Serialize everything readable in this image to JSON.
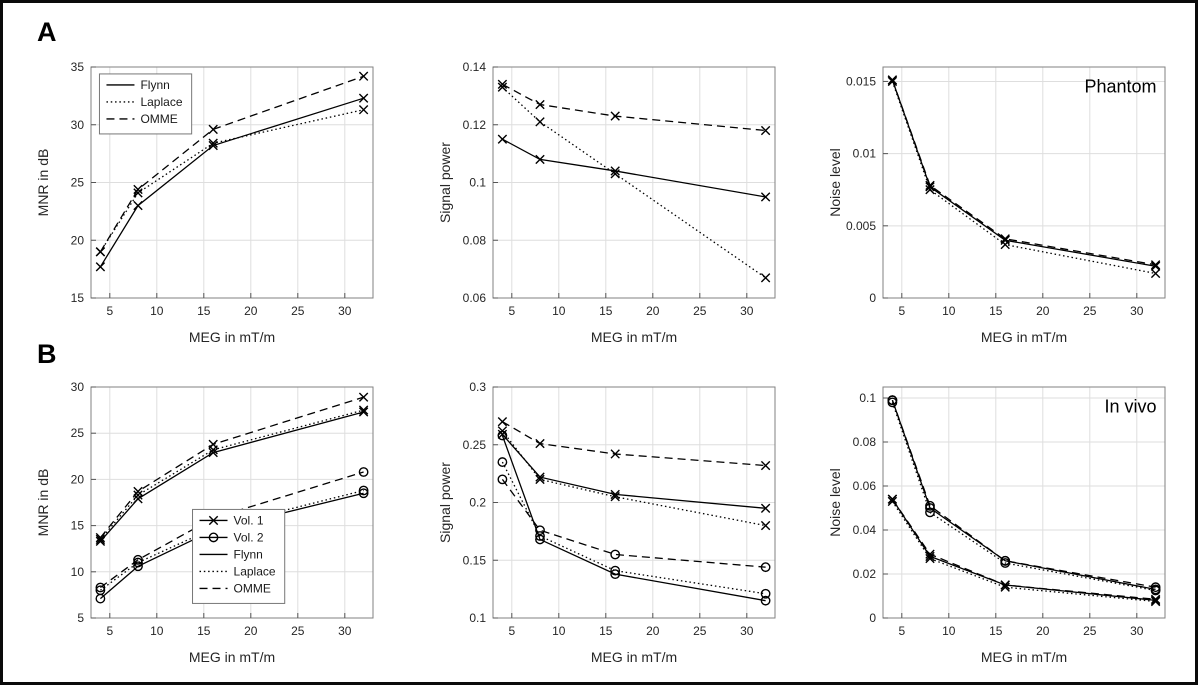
{
  "figure": {
    "panel_a_label": "A",
    "panel_b_label": "B",
    "line_color": "#000000",
    "grid_color": "#dedede",
    "box_color": "#828282"
  },
  "chart_data": [
    {
      "id": "phantom_mnr",
      "type": "line",
      "panel": "A",
      "xlabel": "MEG in mT/m",
      "ylabel": "MNR in dB",
      "xlim": [
        3,
        33
      ],
      "ylim": [
        15,
        35
      ],
      "xticks": [
        5,
        10,
        15,
        20,
        25,
        30
      ],
      "yticks": [
        15,
        20,
        25,
        30,
        35
      ],
      "x": [
        4,
        8,
        16,
        32
      ],
      "grid": true,
      "legend": {
        "fx": 0.03,
        "fy": 0.03,
        "entries": [
          {
            "label": "Flynn",
            "line": "solid",
            "marker": "none"
          },
          {
            "label": "Laplace",
            "line": "dotted",
            "marker": "none"
          },
          {
            "label": "OMME",
            "line": "dashed",
            "marker": "none"
          }
        ]
      },
      "series": [
        {
          "name": "Flynn",
          "line": "solid",
          "marker": "x",
          "values": [
            17.7,
            23.0,
            28.2,
            32.3
          ]
        },
        {
          "name": "Laplace",
          "line": "dotted",
          "marker": "x",
          "values": [
            19.0,
            24.1,
            28.4,
            31.3
          ]
        },
        {
          "name": "OMME",
          "line": "dashed",
          "marker": "x",
          "values": [
            19.0,
            24.4,
            29.6,
            34.2
          ]
        }
      ]
    },
    {
      "id": "phantom_signal",
      "type": "line",
      "panel": "A",
      "xlabel": "MEG in mT/m",
      "ylabel": "Signal power",
      "xlim": [
        3,
        33
      ],
      "ylim": [
        0.06,
        0.14
      ],
      "xticks": [
        5,
        10,
        15,
        20,
        25,
        30
      ],
      "yticks": [
        0.06,
        0.08,
        0.1,
        0.12,
        0.14
      ],
      "x": [
        4,
        8,
        16,
        32
      ],
      "grid": true,
      "series": [
        {
          "name": "Flynn",
          "line": "solid",
          "marker": "x",
          "values": [
            0.115,
            0.108,
            0.104,
            0.095
          ]
        },
        {
          "name": "Laplace",
          "line": "dotted",
          "marker": "x",
          "values": [
            0.133,
            0.121,
            0.103,
            0.067
          ]
        },
        {
          "name": "OMME",
          "line": "dashed",
          "marker": "x",
          "values": [
            0.134,
            0.127,
            0.123,
            0.118
          ]
        }
      ]
    },
    {
      "id": "phantom_noise",
      "type": "line",
      "panel": "A",
      "xlabel": "MEG in mT/m",
      "ylabel": "Noise level",
      "xlim": [
        3,
        33
      ],
      "ylim": [
        0,
        0.016
      ],
      "xticks": [
        5,
        10,
        15,
        20,
        25,
        30
      ],
      "yticks": [
        0,
        0.005,
        0.01,
        0.015
      ],
      "x": [
        4,
        8,
        16,
        32
      ],
      "grid": true,
      "annotation": {
        "text": "Phantom",
        "fx": 0.97,
        "fy": 0.11
      },
      "series": [
        {
          "name": "Flynn",
          "line": "solid",
          "marker": "x",
          "values": [
            0.0151,
            0.0077,
            0.004,
            0.0022
          ]
        },
        {
          "name": "Laplace",
          "line": "dotted",
          "marker": "x",
          "values": [
            0.015,
            0.0075,
            0.0037,
            0.0017
          ]
        },
        {
          "name": "OMME",
          "line": "dashed",
          "marker": "x",
          "values": [
            0.0151,
            0.0078,
            0.0041,
            0.0023
          ]
        }
      ]
    },
    {
      "id": "invivo_mnr",
      "type": "line",
      "panel": "B",
      "xlabel": "MEG in mT/m",
      "ylabel": "MNR in dB",
      "xlim": [
        3,
        33
      ],
      "ylim": [
        5,
        30
      ],
      "xticks": [
        5,
        10,
        15,
        20,
        25,
        30
      ],
      "yticks": [
        5,
        10,
        15,
        20,
        25,
        30
      ],
      "x": [
        4,
        8,
        16,
        32
      ],
      "grid": true,
      "legend": {
        "fx": 0.36,
        "fy": 0.53,
        "entries": [
          {
            "label": "Vol. 1",
            "line": "solid",
            "marker": "x"
          },
          {
            "label": "Vol. 2",
            "line": "solid",
            "marker": "o"
          },
          {
            "label": "Flynn",
            "line": "solid",
            "marker": "none"
          },
          {
            "label": "Laplace",
            "line": "dotted",
            "marker": "none"
          },
          {
            "label": "OMME",
            "line": "dashed",
            "marker": "none"
          }
        ]
      },
      "series": [
        {
          "name": "Vol. 1 Flynn",
          "line": "solid",
          "marker": "x",
          "values": [
            13.3,
            17.9,
            22.9,
            27.3
          ]
        },
        {
          "name": "Vol. 1 Laplace",
          "line": "dotted",
          "marker": "x",
          "values": [
            13.5,
            18.3,
            23.2,
            27.5
          ]
        },
        {
          "name": "Vol. 1 OMME",
          "line": "dashed",
          "marker": "x",
          "values": [
            13.7,
            18.7,
            23.8,
            28.9
          ]
        },
        {
          "name": "Vol. 2 Flynn",
          "line": "solid",
          "marker": "o",
          "values": [
            7.1,
            10.6,
            14.5,
            18.5
          ]
        },
        {
          "name": "Vol. 2 Laplace",
          "line": "dotted",
          "marker": "o",
          "values": [
            8.0,
            11.0,
            14.7,
            18.8
          ]
        },
        {
          "name": "Vol. 2 OMME",
          "line": "dashed",
          "marker": "o",
          "values": [
            8.3,
            11.3,
            15.8,
            20.8
          ]
        }
      ]
    },
    {
      "id": "invivo_signal",
      "type": "line",
      "panel": "B",
      "xlabel": "MEG in mT/m",
      "ylabel": "Signal power",
      "xlim": [
        3,
        33
      ],
      "ylim": [
        0.1,
        0.3
      ],
      "xticks": [
        5,
        10,
        15,
        20,
        25,
        30
      ],
      "yticks": [
        0.1,
        0.15,
        0.2,
        0.25,
        0.3
      ],
      "x": [
        4,
        8,
        16,
        32
      ],
      "grid": true,
      "series": [
        {
          "name": "Vol. 1 Flynn",
          "line": "solid",
          "marker": "x",
          "values": [
            0.259,
            0.222,
            0.207,
            0.195
          ]
        },
        {
          "name": "Vol. 1 Laplace",
          "line": "dotted",
          "marker": "x",
          "values": [
            0.262,
            0.22,
            0.205,
            0.18
          ]
        },
        {
          "name": "Vol. 1 OMME",
          "line": "dashed",
          "marker": "x",
          "values": [
            0.27,
            0.251,
            0.242,
            0.232
          ]
        },
        {
          "name": "Vol. 2 Flynn",
          "line": "solid",
          "marker": "o",
          "values": [
            0.258,
            0.168,
            0.138,
            0.115
          ]
        },
        {
          "name": "Vol. 2 Laplace",
          "line": "dotted",
          "marker": "o",
          "values": [
            0.235,
            0.171,
            0.141,
            0.121
          ]
        },
        {
          "name": "Vol. 2 OMME",
          "line": "dashed",
          "marker": "o",
          "values": [
            0.22,
            0.176,
            0.155,
            0.144
          ]
        }
      ]
    },
    {
      "id": "invivo_noise",
      "type": "line",
      "panel": "B",
      "xlabel": "MEG in mT/m",
      "ylabel": "Noise level",
      "xlim": [
        3,
        33
      ],
      "ylim": [
        0,
        0.105
      ],
      "xticks": [
        5,
        10,
        15,
        20,
        25,
        30
      ],
      "yticks": [
        0,
        0.02,
        0.04,
        0.06,
        0.08,
        0.1
      ],
      "x": [
        4,
        8,
        16,
        32
      ],
      "grid": true,
      "annotation": {
        "text": "In vivo",
        "fx": 0.97,
        "fy": 0.11
      },
      "series": [
        {
          "name": "Vol. 1 Flynn",
          "line": "solid",
          "marker": "x",
          "values": [
            0.054,
            0.028,
            0.015,
            0.008
          ]
        },
        {
          "name": "Vol. 1 Laplace",
          "line": "dotted",
          "marker": "x",
          "values": [
            0.053,
            0.027,
            0.014,
            0.0075
          ]
        },
        {
          "name": "Vol. 1 OMME",
          "line": "dashed",
          "marker": "x",
          "values": [
            0.054,
            0.029,
            0.015,
            0.0085
          ]
        },
        {
          "name": "Vol. 2 Flynn",
          "line": "solid",
          "marker": "o",
          "values": [
            0.099,
            0.05,
            0.026,
            0.013
          ]
        },
        {
          "name": "Vol. 2 Laplace",
          "line": "dotted",
          "marker": "o",
          "values": [
            0.098,
            0.048,
            0.025,
            0.0125
          ]
        },
        {
          "name": "Vol. 2 OMME",
          "line": "dashed",
          "marker": "o",
          "values": [
            0.099,
            0.051,
            0.026,
            0.014
          ]
        }
      ]
    }
  ]
}
